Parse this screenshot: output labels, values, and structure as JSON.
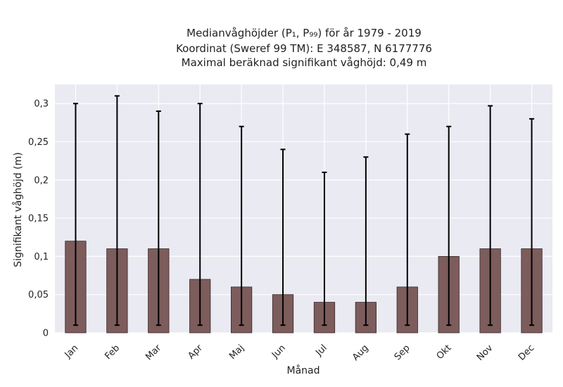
{
  "chart_data": {
    "type": "bar",
    "title_lines": [
      "Medianvåghöjder (P₁, P₉₉) för år 1979 - 2019",
      "Koordinat (Sweref 99 TM): E 348587, N 6177776",
      "Maximal beräknad signifikant våghöjd: 0,49 m"
    ],
    "xlabel": "Månad",
    "ylabel": "Signifikant våghöjd (m)",
    "categories": [
      "Jan",
      "Feb",
      "Mar",
      "Apr",
      "Maj",
      "Jun",
      "Jul",
      "Aug",
      "Sep",
      "Okt",
      "Nov",
      "Dec"
    ],
    "values": [
      0.12,
      0.11,
      0.11,
      0.07,
      0.06,
      0.05,
      0.04,
      0.04,
      0.06,
      0.1,
      0.11,
      0.11
    ],
    "err_low": [
      0.01,
      0.01,
      0.01,
      0.01,
      0.01,
      0.01,
      0.01,
      0.01,
      0.01,
      0.01,
      0.01,
      0.01
    ],
    "err_high": [
      0.3,
      0.31,
      0.29,
      0.3,
      0.27,
      0.24,
      0.21,
      0.23,
      0.26,
      0.27,
      0.297,
      0.28
    ],
    "ylim": [
      0,
      0.325
    ],
    "yticks": [
      0,
      0.05,
      0.1,
      0.15,
      0.2,
      0.25,
      0.3
    ],
    "ytick_labels": [
      "0",
      "0,05",
      "0,1",
      "0,15",
      "0,2",
      "0,25",
      "0,3"
    ],
    "grid": true,
    "colors": {
      "bar": "#7d5c5c",
      "bar_edge": "#3a2a2a",
      "errorbar": "#000000",
      "plot_bg": "#eaeaf2",
      "grid": "#ffffff"
    }
  }
}
